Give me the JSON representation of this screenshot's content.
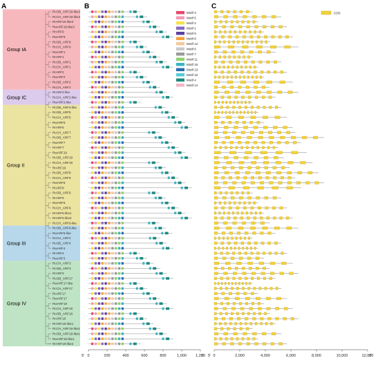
{
  "panels": {
    "a": "A",
    "b": "B",
    "c": "C"
  },
  "groups": [
    {
      "label": "Group IA",
      "color": "#f7b8bd",
      "start": 0,
      "end": 15
    },
    {
      "label": "Group IC",
      "color": "#dccbec",
      "start": 16,
      "end": 18
    },
    {
      "label": "Group II",
      "color": "#ebe3a0",
      "start": 19,
      "end": 42
    },
    {
      "label": "Group III",
      "color": "#b7d7ea",
      "start": 43,
      "end": 49
    },
    {
      "label": "Group IV",
      "color": "#bfe3c5",
      "start": 50,
      "end": 66
    }
  ],
  "genes": [
    "RcOB_ARF18-like3",
    "RcCH_ARF18-like3",
    "RrARF18-like3",
    "RwARF18-like3",
    "RrARF9",
    "RwARF9",
    "RcOB_ARF9",
    "RcCH_ARF9",
    "RwARF1",
    "RrARF1",
    "RcOB_ARF1",
    "RcCH_ARF1",
    "RrARF2",
    "RwARF2",
    "RcOB_ARF2",
    "RcCH_ARF2",
    "RrARF2-like",
    "RcCH_ARF2-like",
    "RwARF2-like",
    "RcOB_ARF2-like",
    "RcOB_ARF5",
    "RcCH_ARF5",
    "RwARF5",
    "RrARF5",
    "RcCH_ARF7",
    "RcOB_ARF7",
    "RwARF7",
    "RrARF7",
    "RwARF19",
    "RcOB_ARF19",
    "RcCH_ARF19",
    "RrARF19",
    "RcOB_ARF8",
    "RcCH_ARF8",
    "RwARF8",
    "RrARF8",
    "RcOB_ARF6",
    "RrARF6",
    "RwARF6",
    "RcCH_ARF6",
    "RrARF6-like1",
    "RrARF6-like2",
    "RcCH_ARF6-like",
    "RcOB_ARF6-like",
    "RwARF6-like",
    "RcCH_ARF4",
    "RcOB_ARF4",
    "RwARF4",
    "RrARF4",
    "RwARF3",
    "RcCH_ARF3",
    "RcOB_ARF3",
    "RrARF3",
    "RcOB_ARF17",
    "RwARF17-like",
    "RcCH_ARF17",
    "RrARF17",
    "RwARF17",
    "RwARF18",
    "RcCH_ARF18",
    "RcOB_ARF18",
    "RrARF18",
    "RrARF18-like1",
    "RcCH_ARF18-like1",
    "RcOB_ARF18-like1",
    "RwARF18-like1",
    "RrARF18-like2"
  ],
  "motif_legend": [
    {
      "name": "Motif 3",
      "color": "#e8456b"
    },
    {
      "name": "Motif 5",
      "color": "#f39ab4"
    },
    {
      "name": "Motif 2",
      "color": "#f4e24a"
    },
    {
      "name": "Motif 1",
      "color": "#8a6bbd"
    },
    {
      "name": "Motif 9",
      "color": "#5a3fa0"
    },
    {
      "name": "Motif 8",
      "color": "#f4a13a"
    },
    {
      "name": "Motif 12",
      "color": "#f7c89a"
    },
    {
      "name": "Motif 6",
      "color": "#c9c9c9"
    },
    {
      "name": "Motif 7",
      "color": "#9a9a9a"
    },
    {
      "name": "Motif 11",
      "color": "#8fd16b"
    },
    {
      "name": "Motif 15",
      "color": "#3bb3c4"
    },
    {
      "name": "Motif 13",
      "color": "#2a6db0"
    },
    {
      "name": "Motif 10",
      "color": "#57c9d6"
    },
    {
      "name": "Motif 4",
      "color": "#1f8a7e"
    },
    {
      "name": "Motif 14",
      "color": "#f4b6c8"
    }
  ],
  "cds_legend": {
    "name": "CDS",
    "color": "#f3d23a"
  },
  "axis_b": {
    "ticks": [
      "0",
      "200",
      "400",
      "600",
      "800",
      "1,000",
      "1,200"
    ],
    "left_end": "5'",
    "right_end": "3'"
  },
  "axis_c": {
    "ticks": [
      "0",
      "2,000",
      "4,000",
      "6,000",
      "8,000",
      "10,000",
      "12,000"
    ],
    "left_end": "5'",
    "right_end": "3'"
  }
}
